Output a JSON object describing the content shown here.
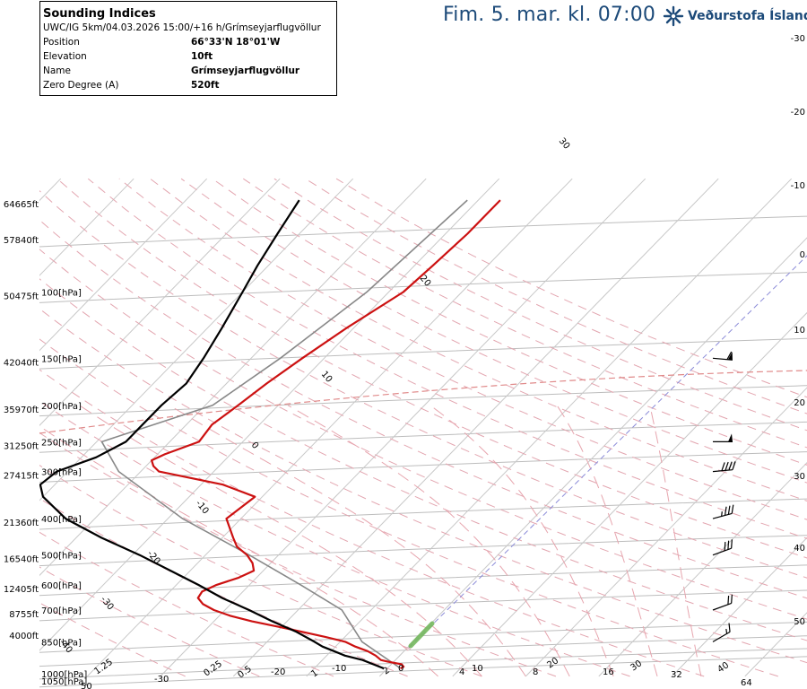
{
  "header": {
    "title": "Fim. 5. mar. kl. 07:00",
    "logo_text": "Veðurstofa Íslands"
  },
  "info": {
    "title": "Sounding Indices",
    "subtitle": "UWC/IG 5km/04.03.2026 15:00/+16 h/Grímseyjarflugvöllur",
    "rows": [
      {
        "key": "Position",
        "value": "66°33'N 18°01'W"
      },
      {
        "key": "Elevation",
        "value": "10ft"
      },
      {
        "key": "Name",
        "value": "Grímseyjarflugvöllur"
      },
      {
        "key": "Zero Degree (A)",
        "value": "520ft"
      }
    ]
  },
  "colors": {
    "temperature": "#cc1111",
    "dewpoint": "#000000",
    "parcel": "#888888",
    "header": "#1c4a79",
    "mixing_ratio": "#74b85e",
    "freezing_level": "#e08a8a"
  },
  "chart_data": {
    "type": "line",
    "title": "Sounding Indices",
    "grid": true,
    "legend": "none",
    "pressure_axis": {
      "labels": [
        "100[hPa]",
        "150[hPa]",
        "200[hPa]",
        "250[hPa]",
        "300[hPa]",
        "400[hPa]",
        "500[hPa]",
        "600[hPa]",
        "700[hPa]",
        "850[hPa]",
        "1000[hPa]",
        "1050[hPa]"
      ],
      "values": [
        100,
        150,
        200,
        250,
        300,
        400,
        500,
        600,
        700,
        850,
        1000,
        1050
      ]
    },
    "height_axis": {
      "labels": [
        "64665ft",
        "57840ft",
        "50475ft",
        "42040ft",
        "35970ft",
        "31250ft",
        "27415ft",
        "21360ft",
        "16540ft",
        "12405ft",
        "8755ft",
        "4000ft"
      ],
      "pressures": [
        57,
        71,
        100,
        150,
        200,
        250,
        300,
        400,
        500,
        600,
        700,
        850
      ]
    },
    "right_axis_labels": [
      "-30",
      "-20",
      "-10",
      "0",
      "10",
      "20",
      "30",
      "40",
      "50"
    ],
    "bottom_labels": [
      "1.25",
      "-30",
      "0.25",
      "0.5",
      "-20",
      "1",
      "-10",
      "2",
      "0",
      "4",
      "10",
      "8",
      "20",
      "16",
      "30",
      "32",
      "40",
      "64",
      "50"
    ],
    "isotherm_labels": [
      "30",
      "20",
      "10",
      "0",
      "-10",
      "-20",
      "-30",
      "-40"
    ],
    "series": [
      {
        "pressure": [
          1000,
          990,
          975,
          960,
          950,
          925,
          900,
          875,
          850,
          825,
          800,
          775,
          750,
          725,
          700,
          675,
          650,
          625,
          600,
          575,
          550,
          525,
          500,
          475,
          450,
          425,
          400,
          375,
          350,
          325,
          300,
          290,
          280,
          270,
          250,
          225,
          200,
          175,
          150,
          125,
          100,
          85,
          70,
          57
        ],
        "temperature": [
          1.8,
          2.0,
          1.4,
          -0.8,
          -2.0,
          -3.3,
          -5.0,
          -7.3,
          -9.3,
          -12.7,
          -16.5,
          -20.5,
          -24.8,
          -28.5,
          -31.5,
          -33.8,
          -35.3,
          -35.6,
          -34.5,
          -32.5,
          -31.3,
          -32.5,
          -34.3,
          -36.8,
          -38.5,
          -40.2,
          -42.0,
          -41.5,
          -41.0,
          -47.0,
          -57.5,
          -59.0,
          -60.0,
          -59.0,
          -56.0,
          -56.5,
          -55.5,
          -54.5,
          -53.0,
          -51.0,
          -48.0,
          -47.5,
          -47.0,
          -47.0
        ]
      },
      {
        "pressure": [
          1000,
          975,
          950,
          925,
          900,
          875,
          850,
          800,
          750,
          700,
          650,
          600,
          550,
          500,
          450,
          400,
          350,
          325,
          300,
          275,
          250,
          225,
          200,
          175,
          150,
          125,
          100,
          85,
          70,
          57
        ],
        "dewpoint": [
          -0.5,
          -2.5,
          -4.5,
          -7.5,
          -9.6,
          -11.8,
          -13.5,
          -17.3,
          -22.0,
          -26.7,
          -32.0,
          -37.0,
          -42.7,
          -49.0,
          -56.5,
          -64.0,
          -70.0,
          -72.0,
          -71.5,
          -68.0,
          -66.0,
          -66.0,
          -66.0,
          -65.5,
          -66.5,
          -68.0,
          -70.0,
          -71.5,
          -73.0,
          -74.5
        ]
      }
    ],
    "parcel_path": {
      "pressure": [
        1000,
        850,
        700,
        600,
        500,
        400,
        300,
        250,
        200,
        150,
        100,
        57
      ],
      "temperature": [
        1.8,
        -7.0,
        -14.0,
        -23.0,
        -34.0,
        -48.0,
        -63.0,
        -69.3,
        -59.0,
        -56.0,
        -53.0,
        -51.5
      ]
    },
    "wind_barbs": [
      {
        "pressure": 850,
        "direction_deg": 240,
        "speed_kt": 15
      },
      {
        "pressure": 700,
        "direction_deg": 250,
        "speed_kt": 20
      },
      {
        "pressure": 500,
        "direction_deg": 250,
        "speed_kt": 30
      },
      {
        "pressure": 400,
        "direction_deg": 255,
        "speed_kt": 35
      },
      {
        "pressure": 300,
        "direction_deg": 265,
        "speed_kt": 40
      },
      {
        "pressure": 250,
        "direction_deg": 270,
        "speed_kt": 50
      },
      {
        "pressure": 150,
        "direction_deg": 275,
        "speed_kt": 60
      }
    ]
  }
}
